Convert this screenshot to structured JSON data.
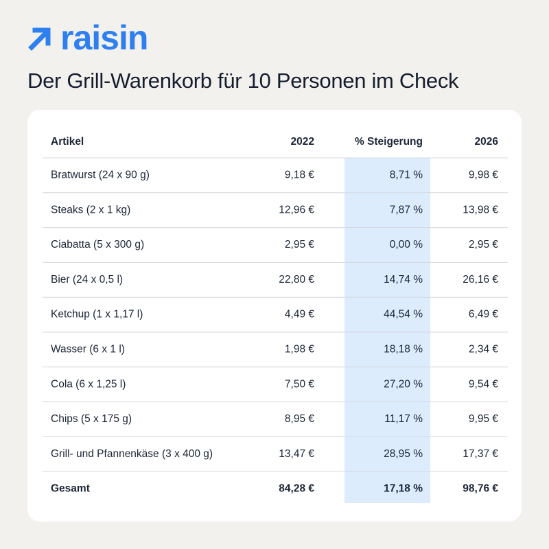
{
  "logo": "raisin",
  "title": "Der Grill-Warenkorb für 10 Personen im Check",
  "table": {
    "header": [
      "Artikel",
      "2022",
      "% Steigerung",
      "2026"
    ],
    "rows": [
      [
        "Bratwurst (24 x 90 g)",
        "9,18 €",
        "8,71 %",
        "9,98 €"
      ],
      [
        "Steaks (2 x 1 kg)",
        "12,96 €",
        "7,87 %",
        "13,98 €"
      ],
      [
        "Ciabatta (5 x 300 g)",
        "2,95 €",
        "0,00 %",
        "2,95 €"
      ],
      [
        "Bier (24 x 0,5 l)",
        "22,80 €",
        "14,74 %",
        "26,16 €"
      ],
      [
        "Ketchup (1 x 1,17 l)",
        "4,49 €",
        "44,54 %",
        "6,49 €"
      ],
      [
        "Wasser (6 x 1 l)",
        "1,98 €",
        "18,18 %",
        "2,34 €"
      ],
      [
        "Cola (6 x 1,25 l)",
        "7,50 €",
        "27,20 %",
        "9,54 €"
      ],
      [
        "Chips (5 x 175 g)",
        "8,95 €",
        "11,17 %",
        "9,95 €"
      ],
      [
        "Grill- und Pfannenkäse (3 x 400 g)",
        "13,47 €",
        "28,95 %",
        "17,37 €"
      ]
    ],
    "total": [
      "Gesamt",
      "84,28 €",
      "17,18 %",
      "98,76 €"
    ]
  }
}
